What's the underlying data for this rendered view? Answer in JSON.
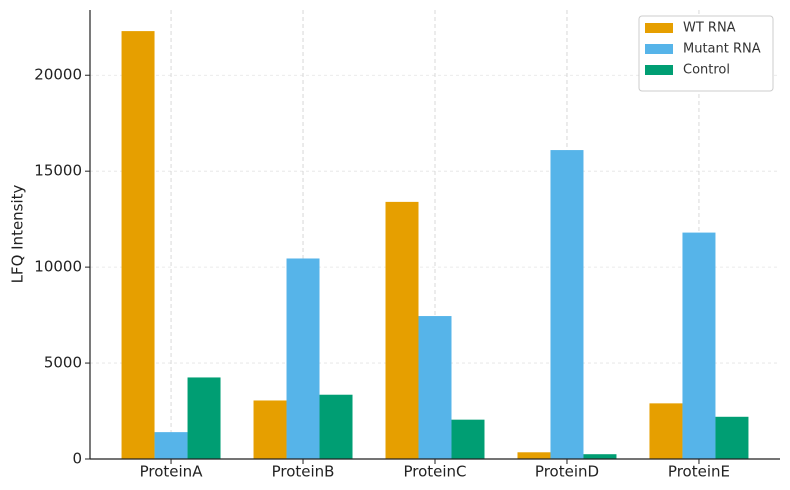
{
  "chart_data": {
    "type": "bar",
    "y_label": "LFQ Intensity",
    "categories": [
      "ProteinA",
      "ProteinB",
      "ProteinC",
      "ProteinD",
      "ProteinE"
    ],
    "series": [
      {
        "name": "WT RNA",
        "color": "#E69F00",
        "values": [
          22300,
          3050,
          13400,
          350,
          2900
        ]
      },
      {
        "name": "Mutant RNA",
        "color": "#56B4E9",
        "values": [
          1400,
          10450,
          7450,
          16100,
          11800
        ]
      },
      {
        "name": "Control",
        "color": "#009E73",
        "values": [
          4250,
          3350,
          2050,
          250,
          2200
        ]
      }
    ],
    "ylim": [
      0,
      23400
    ],
    "yticks": [
      0,
      5000,
      10000,
      15000,
      20000
    ],
    "grid": true,
    "legend": "upper-right"
  }
}
